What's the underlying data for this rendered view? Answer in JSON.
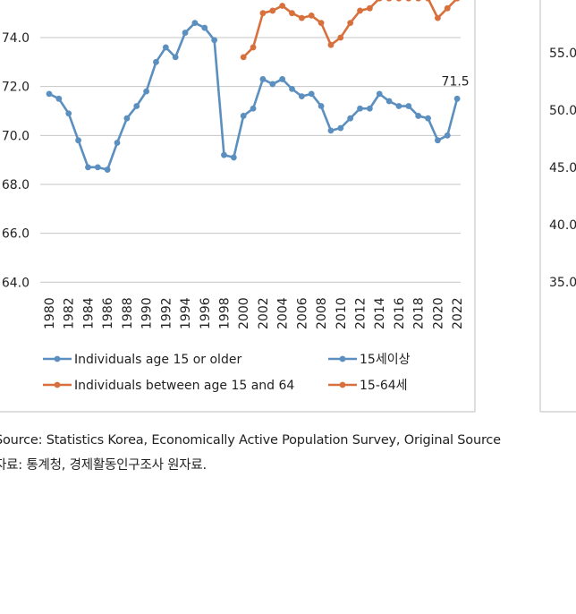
{
  "chart_data": {
    "type": "line",
    "x": [
      1980,
      1981,
      1982,
      1983,
      1984,
      1985,
      1986,
      1987,
      1988,
      1989,
      1990,
      1991,
      1992,
      1993,
      1994,
      1995,
      1996,
      1997,
      1998,
      1999,
      2000,
      2001,
      2002,
      2003,
      2004,
      2005,
      2006,
      2007,
      2008,
      2009,
      2010,
      2011,
      2012,
      2013,
      2014,
      2015,
      2016,
      2017,
      2018,
      2019,
      2020,
      2021,
      2022
    ],
    "x_tick_labels": [
      "1980",
      "1982",
      "1984",
      "1986",
      "1988",
      "1990",
      "1992",
      "1994",
      "1996",
      "1998",
      "2000",
      "2002",
      "2004",
      "2006",
      "2008",
      "2010",
      "2012",
      "2014",
      "2016",
      "2018",
      "2020",
      "2022"
    ],
    "y_tick_labels": [
      "74.0",
      "72.0",
      "70.0",
      "68.0",
      "66.0",
      "64.0"
    ],
    "y_ticks": [
      74,
      72,
      70,
      68,
      66,
      64
    ],
    "ylim": [
      64,
      75.6
    ],
    "series": [
      {
        "name": "Individuals age 15 or older",
        "name_ko": "15세이상",
        "color": "#5b8fbf",
        "values": [
          71.7,
          71.5,
          70.9,
          69.8,
          68.7,
          68.7,
          68.6,
          69.7,
          70.7,
          71.2,
          71.8,
          73.0,
          73.6,
          73.2,
          74.2,
          74.6,
          74.4,
          73.9,
          69.2,
          69.1,
          70.8,
          71.1,
          72.3,
          72.1,
          72.3,
          71.9,
          71.6,
          71.7,
          71.2,
          70.2,
          70.3,
          70.7,
          71.1,
          71.1,
          71.7,
          71.4,
          71.2,
          71.2,
          70.8,
          70.7,
          69.8,
          70.0,
          71.5
        ],
        "end_label": "71.5"
      },
      {
        "name": "Individuals between age 15 and 64",
        "name_ko": "15-64세",
        "color": "#d8703d",
        "values": [
          null,
          null,
          null,
          null,
          null,
          null,
          null,
          null,
          null,
          null,
          null,
          null,
          null,
          null,
          null,
          null,
          null,
          null,
          null,
          null,
          73.2,
          73.6,
          75.0,
          75.1,
          75.3,
          75.0,
          74.8,
          74.9,
          74.6,
          73.7,
          74.0,
          74.6,
          75.1,
          75.2,
          75.6,
          75.6,
          75.6,
          75.6,
          75.6,
          75.6,
          74.8,
          75.2,
          75.6
        ]
      }
    ],
    "right_panel_y_tick_labels": [
      "55.0",
      "50.0",
      "45.0",
      "40.0",
      "35.0"
    ],
    "grid": true,
    "legend_position": "bottom"
  },
  "source": {
    "en": "Source: Statistics Korea, Economically Active Population Survey, Original Source",
    "ko": "자료: 통계청, 경제활동인구조사 원자료."
  }
}
